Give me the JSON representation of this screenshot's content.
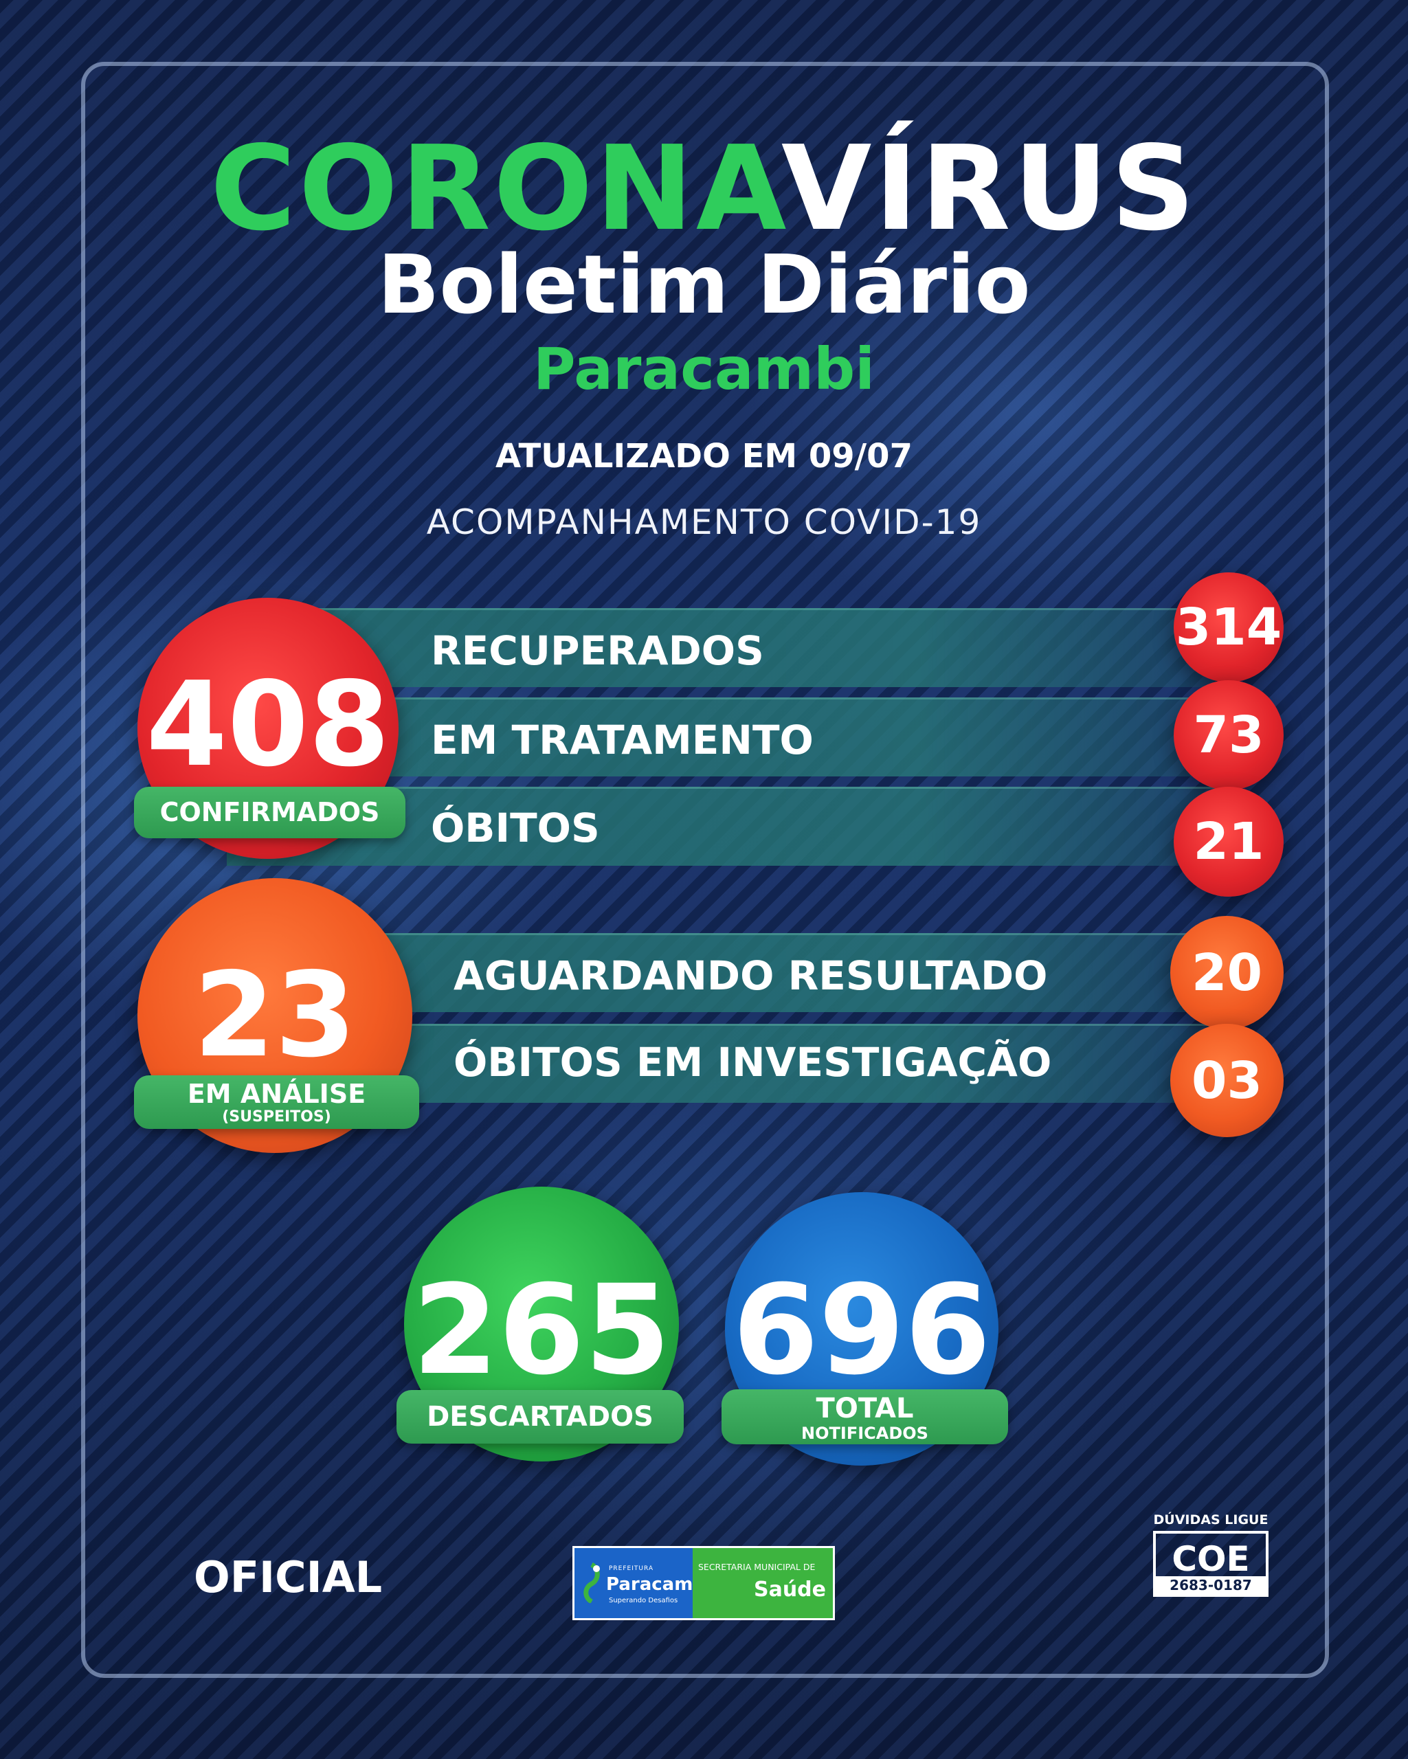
{
  "header": {
    "title_green": "CORONA",
    "title_white": "VÍRUS",
    "subtitle": "Boletim Diário",
    "city": "Paracambi",
    "updated": "ATUALIZADO EM 09/07",
    "tracking": "ACOMPANHAMENTO COVID-19"
  },
  "confirmed": {
    "value": "408",
    "label": "CONFIRMADOS",
    "rows": [
      {
        "label": "RECUPERADOS",
        "value": "314"
      },
      {
        "label": "EM TRATAMENTO",
        "value": "73"
      },
      {
        "label": "ÓBITOS",
        "value": "21"
      }
    ]
  },
  "analysis": {
    "value": "23",
    "label": "EM ANÁLISE",
    "sublabel": "(SUSPEITOS)",
    "rows": [
      {
        "label": "AGUARDANDO RESULTADO",
        "value": "20"
      },
      {
        "label": "ÓBITOS EM INVESTIGAÇÃO",
        "value": "03"
      }
    ]
  },
  "discarded": {
    "value": "265",
    "label": "DESCARTADOS"
  },
  "notified": {
    "value": "696",
    "label": "TOTAL",
    "sublabel": "NOTIFICADOS"
  },
  "footer": {
    "official": "OFICIAL",
    "logo_prefeitura": "PREFEITURA",
    "logo_city": "Paracambi",
    "logo_tagline": "Superando Desafios",
    "logo_secretaria": "SECRETARIA MUNICIPAL DE",
    "logo_saude": "Saúde",
    "coe_top": "DÚVIDAS LIGUE",
    "coe_label": "COE",
    "coe_phone": "2683-0187"
  },
  "colors": {
    "green": "#2fcd5c",
    "red": "#e2252b",
    "orange": "#f15a22",
    "blue": "#1769c2",
    "background": "#17306a"
  }
}
